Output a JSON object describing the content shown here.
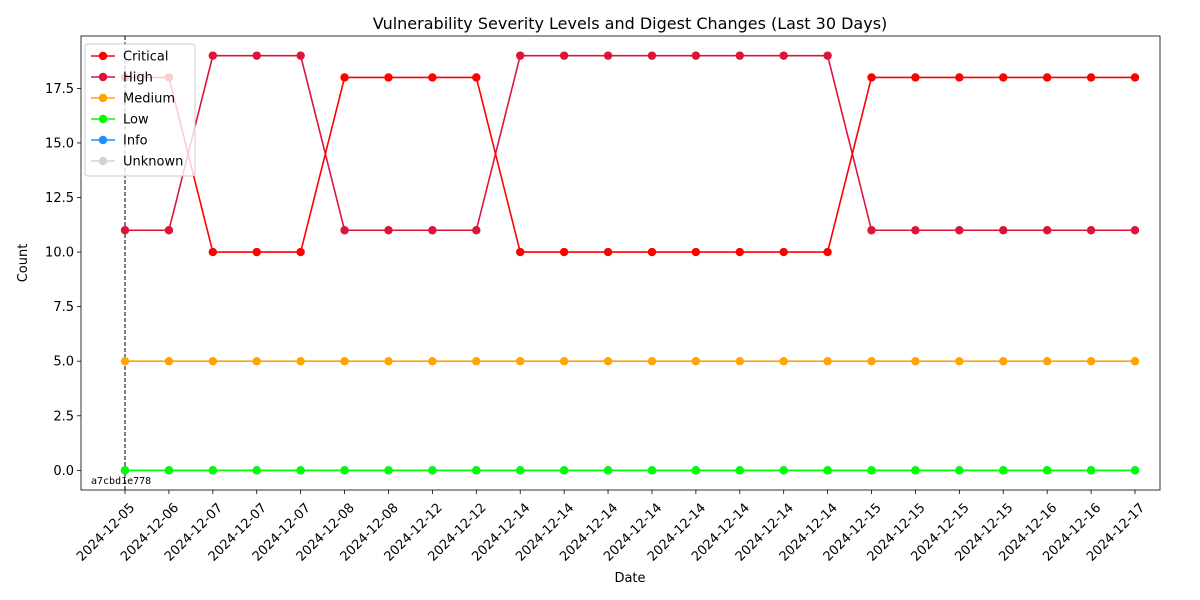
{
  "chart_data": {
    "type": "line",
    "title": "Vulnerability Severity Levels and Digest Changes (Last 30 Days)",
    "xlabel": "Date",
    "ylabel": "Count",
    "categories": [
      "2024-12-05",
      "2024-12-06",
      "2024-12-07",
      "2024-12-07",
      "2024-12-07",
      "2024-12-08",
      "2024-12-08",
      "2024-12-12",
      "2024-12-12",
      "2024-12-14",
      "2024-12-14",
      "2024-12-14",
      "2024-12-14",
      "2024-12-14",
      "2024-12-14",
      "2024-12-14",
      "2024-12-14",
      "2024-12-15",
      "2024-12-15",
      "2024-12-15",
      "2024-12-15",
      "2024-12-16",
      "2024-12-16",
      "2024-12-17"
    ],
    "y_ticks": [
      "0.0",
      "2.5",
      "5.0",
      "7.5",
      "10.0",
      "12.5",
      "15.0",
      "17.5"
    ],
    "ylim": [
      -0.9,
      19.9
    ],
    "grid": false,
    "legend_position": "top-left",
    "series": [
      {
        "name": "Critical",
        "color": "#ff0000",
        "values": [
          18,
          18,
          10,
          10,
          10,
          18,
          18,
          18,
          18,
          10,
          10,
          10,
          10,
          10,
          10,
          10,
          10,
          18,
          18,
          18,
          18,
          18,
          18,
          18
        ]
      },
      {
        "name": "High",
        "color": "#dc143c",
        "values": [
          11,
          11,
          19,
          19,
          19,
          11,
          11,
          11,
          11,
          19,
          19,
          19,
          19,
          19,
          19,
          19,
          19,
          11,
          11,
          11,
          11,
          11,
          11,
          11
        ]
      },
      {
        "name": "Medium",
        "color": "#ffa500",
        "values": [
          5,
          5,
          5,
          5,
          5,
          5,
          5,
          5,
          5,
          5,
          5,
          5,
          5,
          5,
          5,
          5,
          5,
          5,
          5,
          5,
          5,
          5,
          5,
          5
        ]
      },
      {
        "name": "Low",
        "color": "#00ff00",
        "values": [
          0,
          0,
          0,
          0,
          0,
          0,
          0,
          0,
          0,
          0,
          0,
          0,
          0,
          0,
          0,
          0,
          0,
          0,
          0,
          0,
          0,
          0,
          0,
          0
        ]
      },
      {
        "name": "Info",
        "color": "#1e90ff",
        "values": [
          0,
          0,
          0,
          0,
          0,
          0,
          0,
          0,
          0,
          0,
          0,
          0,
          0,
          0,
          0,
          0,
          0,
          0,
          0,
          0,
          0,
          0,
          0,
          0
        ]
      },
      {
        "name": "Unknown",
        "color": "#d3d3d3",
        "values": [
          0,
          0,
          0,
          0,
          0,
          0,
          0,
          0,
          0,
          0,
          0,
          0,
          0,
          0,
          0,
          0,
          0,
          0,
          0,
          0,
          0,
          0,
          0,
          0
        ]
      }
    ],
    "annotations": [
      {
        "index": 0,
        "text": "a7cbd1e778"
      }
    ]
  }
}
